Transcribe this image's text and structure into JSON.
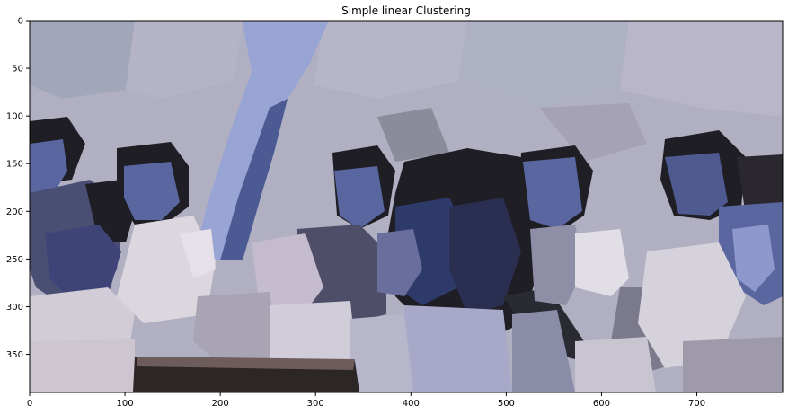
{
  "title": "Simple linear Clustering",
  "axes": {
    "x_ticks": [
      0,
      100,
      200,
      300,
      400,
      500,
      600,
      700
    ],
    "y_ticks": [
      0,
      50,
      100,
      150,
      200,
      250,
      300,
      350
    ],
    "x_range": [
      0,
      790
    ],
    "y_range": [
      0,
      390
    ]
  },
  "image_description_colors": {
    "background": "#b0b0c2",
    "dark_hair": "#1e1e24",
    "blue_face": "#5a66a0",
    "light_shirt": "#d8d4dc",
    "sky_blue": "#98a4d4"
  }
}
